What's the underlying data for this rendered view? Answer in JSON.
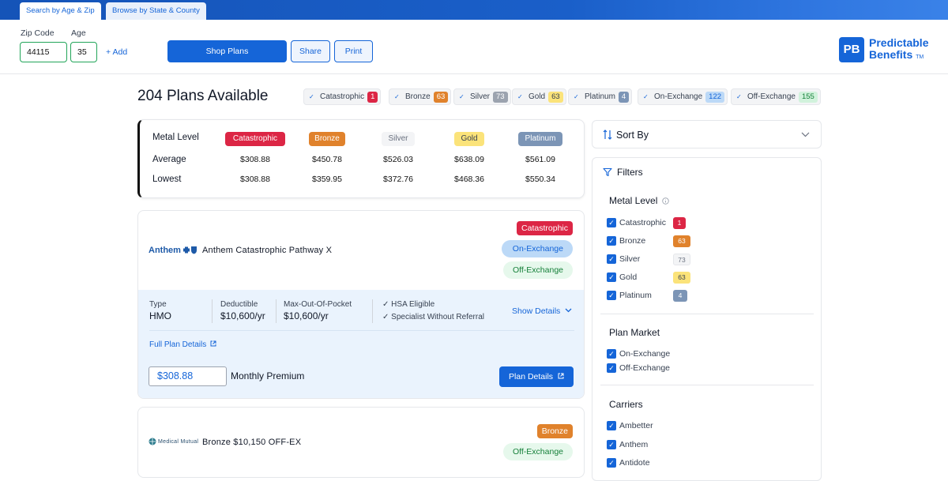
{
  "tabs": [
    {
      "label": "Search by Age & Zip",
      "active": true
    },
    {
      "label": "Browse by State & County",
      "active": false
    }
  ],
  "search": {
    "zip_label": "Zip Code",
    "zip_value": "44115",
    "age_label": "Age",
    "age_value": "35",
    "add_label": "+ Add"
  },
  "actions": {
    "shop_plans": "Shop Plans",
    "share": "Share",
    "print": "Print"
  },
  "brand": {
    "mark": "PB",
    "line1": "Predictable",
    "line2": "Benefits",
    "tm": "TM",
    "color": "#1565d8"
  },
  "results": {
    "plans_available": "204 Plans Available",
    "chips": [
      {
        "label": "Catastrophic",
        "count": "1",
        "style": "red"
      },
      {
        "label": "Bronze",
        "count": "63",
        "style": "orange"
      },
      {
        "label": "Silver",
        "count": "73",
        "style": "gray"
      },
      {
        "label": "Gold",
        "count": "63",
        "style": "yellow"
      },
      {
        "label": "Platinum",
        "count": "4",
        "style": "slate"
      },
      {
        "label": "On-Exchange",
        "count": "122",
        "style": "blue"
      },
      {
        "label": "Off-Exchange",
        "count": "155",
        "style": "green"
      }
    ]
  },
  "summary": {
    "row_labels": [
      "Metal Level",
      "Average",
      "Lowest"
    ],
    "levels": [
      {
        "name": "Catastrophic",
        "average": "$308.88",
        "lowest": "$308.88"
      },
      {
        "name": "Bronze",
        "average": "$450.78",
        "lowest": "$359.95"
      },
      {
        "name": "Silver",
        "average": "$526.03",
        "lowest": "$372.76"
      },
      {
        "name": "Gold",
        "average": "$638.09",
        "lowest": "$468.36"
      },
      {
        "name": "Platinum",
        "average": "$561.09",
        "lowest": "$550.34"
      }
    ]
  },
  "plans": [
    {
      "carrier": "Anthem",
      "name": "Anthem Catastrophic Pathway X",
      "metal": "Catastrophic",
      "markets": [
        "On-Exchange",
        "Off-Exchange"
      ],
      "type_label": "Type",
      "type": "HMO",
      "deductible_label": "Deductible",
      "deductible": "$10,600/yr",
      "moop_label": "Max-Out-Of-Pocket",
      "moop": "$10,600/yr",
      "features": [
        "HSA Eligible",
        "Specialist Without Referral"
      ],
      "show_details": "Show Details",
      "full_plan_details": "Full Plan Details",
      "premium": "$308.88",
      "premium_label": "Monthly Premium",
      "plan_details_button": "Plan Details"
    },
    {
      "carrier": "Medical Mutual",
      "name": "Bronze $10,150 OFF-EX",
      "metal": "Bronze",
      "markets": [
        "Off-Exchange"
      ]
    }
  ],
  "sort": {
    "label": "Sort By"
  },
  "filters": {
    "title": "Filters",
    "metal_level": {
      "title": "Metal Level",
      "items": [
        {
          "label": "Catastrophic",
          "count": "1",
          "checked": true
        },
        {
          "label": "Bronze",
          "count": "63",
          "checked": true
        },
        {
          "label": "Silver",
          "count": "73",
          "checked": true
        },
        {
          "label": "Gold",
          "count": "63",
          "checked": true
        },
        {
          "label": "Platinum",
          "count": "4",
          "checked": true
        }
      ]
    },
    "plan_market": {
      "title": "Plan Market",
      "items": [
        {
          "label": "On-Exchange",
          "checked": true
        },
        {
          "label": "Off-Exchange",
          "checked": true
        }
      ]
    },
    "carriers": {
      "title": "Carriers",
      "items": [
        {
          "label": "Ambetter",
          "checked": true
        },
        {
          "label": "Anthem",
          "checked": true
        },
        {
          "label": "Antidote",
          "checked": true
        }
      ]
    }
  },
  "colors": {
    "catastrophic": "#dc2645",
    "bronze": "#e0822c",
    "silver": "#f3f4f6",
    "gold": "#fbe37a",
    "platinum": "#7c95b6",
    "primary": "#1565d8"
  }
}
